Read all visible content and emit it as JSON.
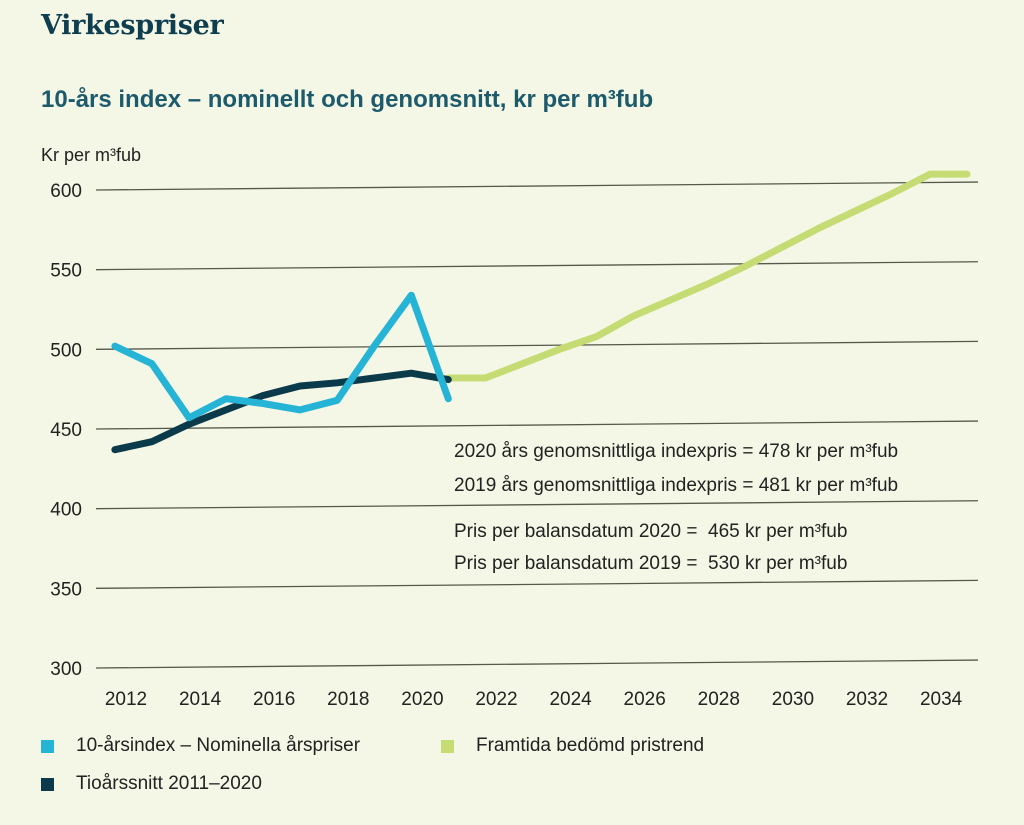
{
  "header": {
    "title": "Virkespriser",
    "subtitle": "10-års index – nominellt och genomsnitt, kr per m³fub",
    "unit_label": "Kr per m³fub"
  },
  "annotations": [
    "2020 års genomsnittliga indexpris = 478 kr per m³fub",
    "2019 års genomsnittliga indexpris = 481 kr per m³fub",
    "Pris per balansdatum 2020 =  465 kr per m³fub",
    "Pris per balansdatum 2019 =  530 kr per m³fub"
  ],
  "legend": [
    {
      "label": "10-årsindex – Nominella årspriser",
      "color": "#25b4d6"
    },
    {
      "label": "Framtida bedömd pristrend",
      "color": "#c5dc74"
    },
    {
      "label": "Tioårssnitt 2011–2020",
      "color": "#0b3a4a"
    }
  ],
  "chart_data": {
    "type": "line",
    "title": "10-års index – nominellt och genomsnitt, kr per m³fub",
    "xlabel": "",
    "ylabel": "Kr per m³fub",
    "ylim": [
      300,
      600
    ],
    "xlim": [
      2011.5,
      2035.5
    ],
    "yticks": [
      300,
      350,
      400,
      450,
      500,
      550,
      600
    ],
    "xticks": [
      2012,
      2014,
      2016,
      2018,
      2020,
      2022,
      2024,
      2026,
      2028,
      2030,
      2032,
      2034
    ],
    "grid": true,
    "legend_position": "bottom",
    "series": [
      {
        "name": "Tioårssnitt 2011–2020",
        "color": "#0b3a4a",
        "x": [
          2011.7,
          2012.7,
          2013.7,
          2014.7,
          2015.7,
          2016.7,
          2017.7,
          2018.7,
          2019.7,
          2020.7
        ],
        "values": [
          437,
          442,
          453,
          462,
          471,
          477,
          479,
          482,
          485,
          481
        ]
      },
      {
        "name": "10-årsindex – Nominella årspriser",
        "color": "#25b4d6",
        "x": [
          2011.7,
          2012.7,
          2013.7,
          2014.7,
          2015.7,
          2016.7,
          2017.7,
          2018.7,
          2019.7,
          2020.7
        ],
        "values": [
          502,
          491,
          457,
          469,
          466,
          462,
          468,
          502,
          534,
          469
        ]
      },
      {
        "name": "Framtida bedömd pristrend",
        "color": "#c5dc74",
        "x": [
          2020.7,
          2021.7,
          2022.7,
          2023.7,
          2024.7,
          2025.7,
          2026.7,
          2027.7,
          2028.7,
          2029.7,
          2030.7,
          2031.7,
          2032.7,
          2033.7,
          2034.7
        ],
        "values": [
          482,
          482,
          491,
          500,
          508,
          521,
          531,
          541,
          552,
          564,
          576,
          587,
          598,
          610,
          610
        ]
      }
    ]
  }
}
